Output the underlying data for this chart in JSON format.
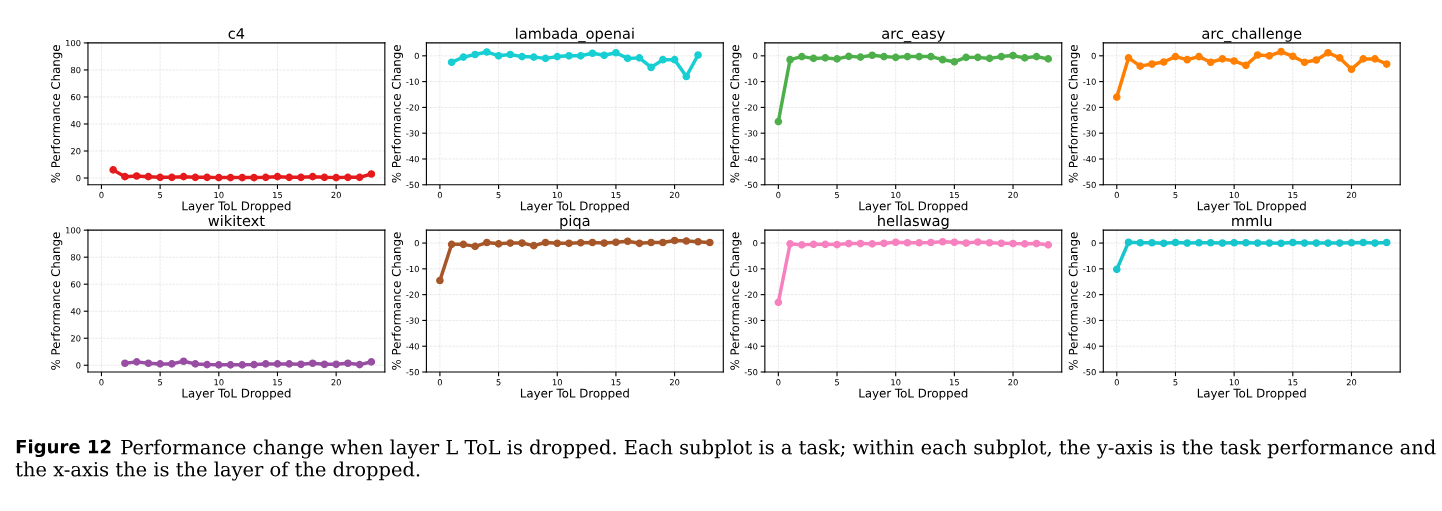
{
  "chart_data": [
    {
      "type": "line",
      "title": "c4",
      "xlabel": "Layer ToL Dropped",
      "ylabel": "% Performance Change",
      "xlim": [
        -1.15,
        24.15
      ],
      "xticks": [
        0,
        5,
        10,
        15,
        20
      ],
      "ylim": [
        -5,
        100
      ],
      "yticks": [
        0,
        20,
        40,
        60,
        80,
        100
      ],
      "grid": true,
      "marker": "circle",
      "line_style": "solid",
      "series": [
        {
          "color": "#e41a1c",
          "x": [
            1,
            2,
            3,
            4,
            5,
            6,
            7,
            8,
            9,
            10,
            11,
            12,
            13,
            14,
            15,
            16,
            17,
            18,
            19,
            20,
            21,
            22,
            23
          ],
          "values": [
            6,
            1,
            1.5,
            1,
            0.5,
            0.5,
            1,
            0.5,
            0.5,
            0.3,
            0.3,
            0.3,
            0.3,
            0.5,
            1,
            0.5,
            0.5,
            1,
            0.5,
            0.3,
            0.5,
            0.5,
            3
          ]
        }
      ]
    },
    {
      "type": "line",
      "title": "lambada_openai",
      "xlabel": "Layer ToL Dropped",
      "ylabel": "% Performance Change",
      "xlim": [
        -1.15,
        24.15
      ],
      "xticks": [
        0,
        5,
        10,
        15,
        20
      ],
      "ylim": [
        -50,
        5
      ],
      "yticks": [
        -50,
        -40,
        -30,
        -20,
        -10,
        0
      ],
      "grid": true,
      "marker": "circle",
      "line_style": "solid",
      "series": [
        {
          "color": "#17cfd3",
          "x": [
            1,
            2,
            3,
            4,
            5,
            6,
            7,
            8,
            9,
            10,
            11,
            12,
            13,
            14,
            15,
            16,
            17,
            18,
            19,
            20,
            21,
            22
          ],
          "values": [
            -2.5,
            -0.5,
            0.5,
            1.5,
            0,
            0.5,
            -0.3,
            -0.5,
            -1,
            -0.3,
            0,
            0,
            1,
            0.2,
            1.2,
            -1,
            -0.8,
            -4.5,
            -1.5,
            -1.5,
            -8,
            0.3
          ]
        }
      ]
    },
    {
      "type": "line",
      "title": "arc_easy",
      "xlabel": "Layer ToL Dropped",
      "ylabel": "% Performance Change",
      "x": [
        0,
        1,
        2,
        3,
        4,
        5,
        6,
        7,
        8,
        9,
        10,
        11,
        12,
        13,
        14,
        15,
        16,
        17,
        18,
        19,
        20,
        21,
        22,
        23
      ],
      "xlim": [
        -1.15,
        24.15
      ],
      "xticks": [
        0,
        5,
        10,
        15,
        20
      ],
      "ylim": [
        -50,
        5
      ],
      "yticks": [
        -50,
        -40,
        -30,
        -20,
        -10,
        0
      ],
      "grid": true,
      "marker": "circle",
      "line_style": "solid",
      "series": [
        {
          "color": "#4daf4a",
          "values": [
            -25.5,
            -1.5,
            -0.3,
            -1,
            -0.8,
            -1.2,
            -0.2,
            -0.5,
            0.2,
            -0.3,
            -0.6,
            -0.3,
            -0.3,
            -0.3,
            -1.5,
            -2.3,
            -0.6,
            -0.6,
            -1,
            -0.3,
            0.1,
            -0.8,
            -0.3,
            -1.2
          ]
        }
      ]
    },
    {
      "type": "line",
      "title": "arc_challenge",
      "xlabel": "Layer ToL Dropped",
      "ylabel": "% Performance Change",
      "x": [
        0,
        1,
        2,
        3,
        4,
        5,
        6,
        7,
        8,
        9,
        10,
        11,
        12,
        13,
        14,
        15,
        16,
        17,
        18,
        19,
        20,
        21,
        22,
        23
      ],
      "xlim": [
        -1.15,
        24.15
      ],
      "xticks": [
        0,
        5,
        10,
        15,
        20
      ],
      "ylim": [
        -50,
        5
      ],
      "yticks": [
        -50,
        -40,
        -30,
        -20,
        -10,
        0
      ],
      "grid": true,
      "marker": "circle",
      "line_style": "solid",
      "series": [
        {
          "color": "#ff7f00",
          "values": [
            -16,
            -0.8,
            -4,
            -3.2,
            -2.4,
            -0.3,
            -1.5,
            -0.3,
            -2.5,
            -1.2,
            -2,
            -3.7,
            0.3,
            0,
            1.6,
            -0.2,
            -2.5,
            -1.6,
            1.2,
            -0.8,
            -5.2,
            -1.2,
            -1.2,
            -3.2
          ]
        }
      ]
    },
    {
      "type": "line",
      "title": "wikitext",
      "xlabel": "Layer ToL Dropped",
      "ylabel": "% Performance Change",
      "xlim": [
        -1.15,
        24.15
      ],
      "xticks": [
        0,
        5,
        10,
        15,
        20
      ],
      "ylim": [
        -5,
        100
      ],
      "yticks": [
        0,
        20,
        40,
        60,
        80,
        100
      ],
      "grid": true,
      "marker": "circle",
      "line_style": "solid",
      "series": [
        {
          "color": "#984ea3",
          "x": [
            2,
            3,
            4,
            5,
            6,
            7,
            8,
            9,
            10,
            11,
            12,
            13,
            14,
            15,
            16,
            17,
            18,
            19,
            20,
            21,
            22,
            23
          ],
          "values": [
            1.5,
            2.5,
            1.5,
            1,
            1,
            3,
            1,
            0.5,
            0.3,
            0.3,
            0.3,
            0.5,
            1,
            1,
            1,
            0.7,
            1.5,
            0.7,
            0.7,
            1.5,
            0.5,
            2.5
          ]
        }
      ]
    },
    {
      "type": "line",
      "title": "piqa",
      "xlabel": "Layer ToL Dropped",
      "ylabel": "% Performance Change",
      "x": [
        0,
        1,
        2,
        3,
        4,
        5,
        6,
        7,
        8,
        9,
        10,
        11,
        12,
        13,
        14,
        15,
        16,
        17,
        18,
        19,
        20,
        21,
        22,
        23
      ],
      "xlim": [
        -1.15,
        24.15
      ],
      "xticks": [
        0,
        5,
        10,
        15,
        20
      ],
      "ylim": [
        -50,
        5
      ],
      "yticks": [
        -50,
        -40,
        -30,
        -20,
        -10,
        0
      ],
      "grid": true,
      "marker": "circle",
      "line_style": "solid",
      "series": [
        {
          "color": "#a65628",
          "values": [
            -14.5,
            -0.5,
            -0.5,
            -1.3,
            0.2,
            -0.3,
            0,
            0,
            -1,
            0.2,
            -0.1,
            -0.1,
            0.1,
            0.2,
            0,
            0.3,
            0.7,
            -0.1,
            0.2,
            0.2,
            1,
            0.8,
            0.5,
            0.2
          ]
        }
      ]
    },
    {
      "type": "line",
      "title": "hellaswag",
      "xlabel": "Layer ToL Dropped",
      "ylabel": "% Performance Change",
      "x": [
        0,
        1,
        2,
        3,
        4,
        5,
        6,
        7,
        8,
        9,
        10,
        11,
        12,
        13,
        14,
        15,
        16,
        17,
        18,
        19,
        20,
        21,
        22,
        23
      ],
      "xlim": [
        -1.15,
        24.15
      ],
      "xticks": [
        0,
        5,
        10,
        15,
        20
      ],
      "ylim": [
        -50,
        5
      ],
      "yticks": [
        -50,
        -40,
        -30,
        -20,
        -10,
        0
      ],
      "grid": true,
      "marker": "circle",
      "line_style": "solid",
      "series": [
        {
          "color": "#f781bf",
          "values": [
            -23,
            -0.3,
            -0.7,
            -0.5,
            -0.5,
            -0.6,
            -0.2,
            -0.2,
            -0.3,
            -0.1,
            0.3,
            0.1,
            0.1,
            0.2,
            0.5,
            0.3,
            0,
            0.4,
            0.1,
            -0.1,
            -0.2,
            -0.3,
            -0.2,
            -0.7
          ]
        }
      ]
    },
    {
      "type": "line",
      "title": "mmlu",
      "xlabel": "Layer ToL Dropped",
      "ylabel": "% Performance Change",
      "x": [
        0,
        1,
        2,
        3,
        4,
        5,
        6,
        7,
        8,
        9,
        10,
        11,
        12,
        13,
        14,
        15,
        16,
        17,
        18,
        19,
        20,
        21,
        22,
        23
      ],
      "xlim": [
        -1.15,
        24.15
      ],
      "xticks": [
        0,
        5,
        10,
        15,
        20
      ],
      "ylim": [
        -50,
        5
      ],
      "yticks": [
        -50,
        -40,
        -30,
        -20,
        -10,
        0
      ],
      "grid": true,
      "marker": "circle",
      "line_style": "solid",
      "series": [
        {
          "color": "#17c6cc",
          "values": [
            -10.2,
            0.3,
            0.1,
            0.1,
            -0.1,
            0.2,
            0,
            0.1,
            0.1,
            0,
            0.1,
            0.1,
            0,
            0,
            -0.1,
            0.2,
            0,
            0,
            0,
            0,
            0.1,
            0.2,
            0,
            0.2
          ]
        }
      ],
      "annotations": [
        "Figure 12",
        "Performance change when layer L ToL is dropped. Each subplot is a task; within each subplot, the y-axis is the task performance and the x-axis the is the layer of the dropped."
      ]
    }
  ]
}
